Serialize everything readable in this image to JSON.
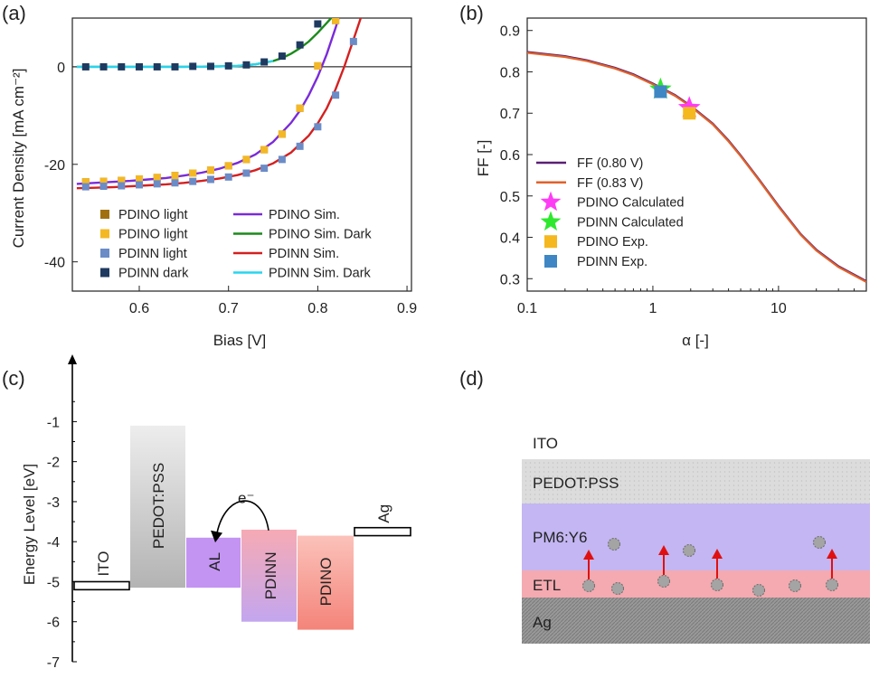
{
  "panel_labels": {
    "a": "(a)",
    "b": "(b)",
    "c": "(c)",
    "d": "(d)"
  },
  "chart_data": [
    {
      "panel": "(a)",
      "type": "line",
      "xlabel": "Bias [V]",
      "ylabel": "Current Density [mA cm⁻²]",
      "xlim": [
        0.525,
        0.905
      ],
      "ylim": [
        -46,
        10
      ],
      "xticks": [
        0.6,
        0.7,
        0.8,
        0.9
      ],
      "xtick_labels": [
        "0.6",
        "0.7",
        "0.8",
        "0.9"
      ],
      "yticks": [
        -40,
        -20,
        0
      ],
      "ytick_labels": [
        "-40",
        "-20",
        "0"
      ],
      "legend_placement": "bottom",
      "series": [
        {
          "name": "PDINO light",
          "kind": "markers",
          "color": "#a07010",
          "x": [
            0.54,
            0.56,
            0.58,
            0.6,
            0.62,
            0.64,
            0.66,
            0.68,
            0.7,
            0.72,
            0.74,
            0.76,
            0.78,
            0.8,
            0.82
          ],
          "y": [
            -23.6,
            -23.5,
            -23.3,
            -23.0,
            -22.7,
            -22.3,
            -21.8,
            -21.2,
            -20.3,
            -19.0,
            -17.0,
            -13.8,
            -8.5,
            0.2,
            9.5
          ]
        },
        {
          "name": "PDINO light",
          "kind": "markers",
          "color": "#f4b824",
          "x": [
            0.54,
            0.56,
            0.58,
            0.6,
            0.62,
            0.64,
            0.66,
            0.68,
            0.7,
            0.72,
            0.74,
            0.76,
            0.78,
            0.8,
            0.82
          ],
          "y": [
            -23.6,
            -23.5,
            -23.3,
            -23.0,
            -22.7,
            -22.3,
            -21.8,
            -21.2,
            -20.3,
            -19.0,
            -17.0,
            -13.8,
            -8.5,
            0.2,
            9.5
          ]
        },
        {
          "name": "PDINN light",
          "kind": "markers",
          "color": "#6b8cc7",
          "x": [
            0.54,
            0.56,
            0.58,
            0.6,
            0.62,
            0.64,
            0.66,
            0.68,
            0.7,
            0.72,
            0.74,
            0.76,
            0.78,
            0.8,
            0.82,
            0.84
          ],
          "y": [
            -24.6,
            -24.5,
            -24.4,
            -24.2,
            -24.0,
            -23.8,
            -23.5,
            -23.1,
            -22.6,
            -21.8,
            -20.8,
            -19.0,
            -16.3,
            -12.3,
            -5.8,
            5.2
          ]
        },
        {
          "name": "PDINN dark",
          "kind": "markers",
          "color": "#1f3a60",
          "x": [
            0.54,
            0.56,
            0.58,
            0.6,
            0.62,
            0.64,
            0.66,
            0.68,
            0.7,
            0.72,
            0.74,
            0.76,
            0.78,
            0.8
          ],
          "y": [
            0.0,
            0.0,
            0.0,
            0.0,
            0.0,
            0.0,
            0.1,
            0.1,
            0.2,
            0.4,
            1.0,
            2.2,
            4.5,
            8.8
          ]
        },
        {
          "name": "PDINO Sim.",
          "kind": "line",
          "color": "#7a2bd9",
          "x": [
            0.53,
            0.55,
            0.57,
            0.59,
            0.61,
            0.63,
            0.65,
            0.67,
            0.69,
            0.71,
            0.73,
            0.75,
            0.77,
            0.78,
            0.79,
            0.8,
            0.81,
            0.82,
            0.825
          ],
          "y": [
            -24.0,
            -23.8,
            -23.6,
            -23.4,
            -23.1,
            -22.8,
            -22.3,
            -21.7,
            -20.9,
            -19.7,
            -18.0,
            -15.4,
            -11.5,
            -9.0,
            -5.8,
            -2.0,
            2.6,
            8.0,
            11.0
          ]
        },
        {
          "name": "PDINO Sim. Dark",
          "kind": "line",
          "color": "#1b8a1b",
          "x": [
            0.53,
            0.55,
            0.57,
            0.59,
            0.61,
            0.63,
            0.65,
            0.67,
            0.69,
            0.71,
            0.73,
            0.75,
            0.76,
            0.77,
            0.78,
            0.79,
            0.8,
            0.81,
            0.82
          ],
          "y": [
            0.0,
            0.0,
            0.0,
            0.0,
            0.0,
            0.0,
            0.0,
            0.05,
            0.1,
            0.2,
            0.5,
            1.2,
            1.8,
            2.7,
            3.8,
            5.2,
            7.0,
            9.0,
            11.0
          ]
        },
        {
          "name": "PDINN Sim.",
          "kind": "line",
          "color": "#d42020",
          "x": [
            0.53,
            0.55,
            0.57,
            0.59,
            0.61,
            0.63,
            0.65,
            0.67,
            0.69,
            0.71,
            0.73,
            0.75,
            0.77,
            0.79,
            0.8,
            0.81,
            0.82,
            0.83,
            0.84,
            0.85
          ],
          "y": [
            -24.9,
            -24.8,
            -24.7,
            -24.5,
            -24.3,
            -24.1,
            -23.8,
            -23.4,
            -22.9,
            -22.2,
            -21.2,
            -19.8,
            -17.6,
            -14.1,
            -11.6,
            -8.5,
            -4.6,
            0.2,
            5.6,
            11.0
          ]
        },
        {
          "name": "PDINN Sim. Dark",
          "kind": "line",
          "color": "#27d5f0",
          "x": [
            0.53,
            0.55,
            0.57,
            0.59,
            0.61,
            0.63,
            0.65,
            0.67,
            0.69,
            0.71,
            0.73,
            0.75
          ],
          "y": [
            0.0,
            0.0,
            0.0,
            0.0,
            0.0,
            0.0,
            0.0,
            0.05,
            0.1,
            0.2,
            0.5,
            1.2
          ]
        }
      ]
    },
    {
      "panel": "(b)",
      "type": "line",
      "xlabel": "α [-]",
      "ylabel": "FF [-]",
      "xscale": "log",
      "xlim": [
        0.1,
        50
      ],
      "ylim": [
        0.27,
        0.93
      ],
      "xticks": [
        0.1,
        1,
        10
      ],
      "xtick_labels": [
        "0.1",
        "1",
        "10"
      ],
      "yticks": [
        0.3,
        0.4,
        0.5,
        0.6,
        0.7,
        0.8,
        0.9
      ],
      "ytick_labels": [
        "0.3",
        "0.4",
        "0.5",
        "0.6",
        "0.7",
        "0.8",
        "0.9"
      ],
      "legend_placement": "bottom-left",
      "series": [
        {
          "name": "FF (0.80 V)",
          "kind": "line",
          "color": "#5b1f74",
          "x": [
            0.1,
            0.2,
            0.3,
            0.5,
            0.7,
            1,
            1.5,
            2,
            3,
            4,
            5,
            7,
            10,
            15,
            20,
            30,
            50
          ],
          "y": [
            0.848,
            0.838,
            0.828,
            0.81,
            0.794,
            0.772,
            0.744,
            0.718,
            0.675,
            0.634,
            0.598,
            0.54,
            0.476,
            0.408,
            0.37,
            0.33,
            0.294
          ]
        },
        {
          "name": "FF (0.83 V)",
          "kind": "line",
          "color": "#e0622a",
          "x": [
            0.1,
            0.2,
            0.3,
            0.5,
            0.7,
            1,
            1.5,
            2,
            3,
            4,
            5,
            7,
            10,
            15,
            20,
            30,
            50
          ],
          "y": [
            0.846,
            0.836,
            0.826,
            0.808,
            0.792,
            0.77,
            0.742,
            0.716,
            0.673,
            0.632,
            0.596,
            0.538,
            0.474,
            0.406,
            0.368,
            0.328,
            0.292
          ]
        },
        {
          "name": "PDINO Calculated",
          "kind": "marker",
          "marker": "star",
          "color": "#ff3cf5",
          "x": [
            1.95
          ],
          "y": [
            0.713
          ]
        },
        {
          "name": "PDINN Calculated",
          "kind": "marker",
          "marker": "star",
          "color": "#2ee82e",
          "x": [
            1.15
          ],
          "y": [
            0.758
          ]
        },
        {
          "name": "PDINO Exp.",
          "kind": "marker",
          "marker": "square",
          "color": "#f5b81f",
          "x": [
            1.95
          ],
          "y": [
            0.7
          ]
        },
        {
          "name": "PDINN Exp.",
          "kind": "marker",
          "marker": "square",
          "color": "#3f86c4",
          "x": [
            1.15
          ],
          "y": [
            0.752
          ]
        }
      ]
    }
  ],
  "panel_c": {
    "ylabel": "Energy Level [eV]",
    "yticks": [
      -1,
      -2,
      -3,
      -4,
      -5,
      -6,
      -7
    ],
    "ytick_labels": [
      "-1",
      "-2",
      "-3",
      "-4",
      "-5",
      "-6",
      "-7"
    ],
    "ylim": [
      -7,
      0.5
    ],
    "blocks": [
      {
        "label": "ITO",
        "top": -5.0,
        "bottom": -5.2,
        "color": "#ffffff",
        "stroke": "#000000",
        "kind": "line-level"
      },
      {
        "label": "PEDOT:PSS",
        "top": -1.1,
        "bottom": -5.15,
        "color": "#c8c8c8",
        "kind": "bar"
      },
      {
        "label": "AL",
        "top": -3.9,
        "bottom": -5.15,
        "color": "#c199ef",
        "kind": "bar"
      },
      {
        "label": "PDINN",
        "top": -3.7,
        "bottom": -6.0,
        "color": "#c9a8e6",
        "kind": "bar"
      },
      {
        "label": "PDINO",
        "top": -3.85,
        "bottom": -6.2,
        "color": "#f59c92",
        "kind": "bar"
      },
      {
        "label": "Ag",
        "top": -3.65,
        "bottom": -3.85,
        "color": "#ffffff",
        "stroke": "#000000",
        "kind": "line-level"
      }
    ],
    "electron_label": "e⁻"
  },
  "panel_d": {
    "layers": [
      {
        "label": "ITO",
        "color": "#ffffff"
      },
      {
        "label": "PEDOT:PSS",
        "color": "#d8d8d8"
      },
      {
        "label": "PM6:Y6",
        "color": "#c3b6f2"
      },
      {
        "label": "ETL",
        "color": "#f4aab0"
      },
      {
        "label": "Ag",
        "color": "#8f8f8f"
      }
    ]
  }
}
